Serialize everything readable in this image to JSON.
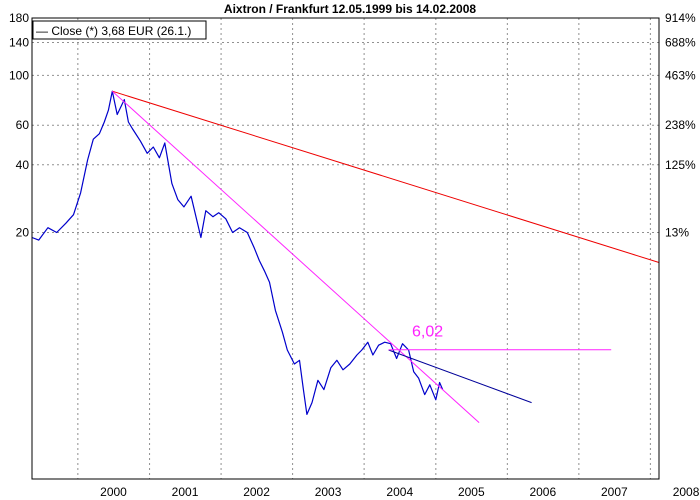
{
  "chart_data": {
    "type": "line",
    "title": "Aixtron / Frankfurt 12.05.1999 bis 14.02.2008",
    "legend": {
      "label": "— Close (*) 3,68 EUR (26.1.)",
      "placement": "top-left"
    },
    "x_axis": {
      "type": "date",
      "range": [
        "1999-05-12",
        "2008-02-14"
      ],
      "tick_labels": [
        "2000",
        "2001",
        "2002",
        "2003",
        "2004",
        "2005",
        "2006",
        "2007",
        "2008"
      ],
      "tick_dates": [
        "2000-01-01",
        "2001-01-01",
        "2002-01-01",
        "2003-01-01",
        "2004-01-01",
        "2005-01-01",
        "2006-01-01",
        "2007-01-01",
        "2008-01-01"
      ]
    },
    "y_axis_left": {
      "scale": "log",
      "tick_labels": [
        "180",
        "140",
        "100",
        "60",
        "40",
        "20"
      ],
      "tick_values": [
        180,
        140,
        100,
        60,
        40,
        20
      ],
      "range": [
        1.6,
        180
      ]
    },
    "y_axis_right": {
      "tick_labels": [
        "914%",
        "688%",
        "463%",
        "238%",
        "125%",
        "13%"
      ]
    },
    "grid": true,
    "series": [
      {
        "name": "Close (*) 3,68 EUR (26.1.)",
        "color": "#0000cc",
        "x": [
          "1999-05-12",
          "1999-06-15",
          "1999-08-01",
          "1999-09-15",
          "1999-11-01",
          "1999-12-10",
          "2000-01-15",
          "2000-02-20",
          "2000-03-20",
          "2000-04-20",
          "2000-05-15",
          "2000-06-05",
          "2000-06-25",
          "2000-07-20",
          "2000-08-25",
          "2000-09-15",
          "2000-10-05",
          "2000-11-15",
          "2000-12-20",
          "2001-01-20",
          "2001-02-20",
          "2001-03-20",
          "2001-04-25",
          "2001-05-25",
          "2001-06-25",
          "2001-08-01",
          "2001-09-20",
          "2001-10-15",
          "2001-11-20",
          "2001-12-20",
          "2002-01-25",
          "2002-03-01",
          "2002-04-05",
          "2002-05-15",
          "2002-06-20",
          "2002-07-15",
          "2002-08-10",
          "2002-09-05",
          "2002-10-05",
          "2002-11-10",
          "2002-12-05",
          "2003-01-10",
          "2003-02-05",
          "2003-02-25",
          "2003-03-15",
          "2003-04-10",
          "2003-05-10",
          "2003-06-10",
          "2003-07-15",
          "2003-08-15",
          "2003-09-15",
          "2003-10-20",
          "2003-11-25",
          "2003-12-20",
          "2004-01-20",
          "2004-02-15",
          "2004-03-15",
          "2004-04-15",
          "2004-05-15",
          "2004-06-15",
          "2004-07-15",
          "2004-08-15",
          "2004-09-10",
          "2004-10-05",
          "2004-11-05",
          "2004-12-01",
          "2005-01-01",
          "2005-01-20",
          "2005-02-05"
        ],
        "values": [
          19,
          18.5,
          21,
          20,
          22,
          24,
          30,
          42,
          52,
          55,
          62,
          70,
          85,
          67,
          78,
          62,
          58,
          51,
          45,
          48,
          43,
          50,
          33,
          28,
          26,
          29,
          19,
          25,
          23.5,
          24.5,
          23,
          20,
          21,
          20,
          17,
          15,
          13.5,
          12,
          9,
          7.2,
          6,
          5.2,
          5.4,
          4,
          3.1,
          3.5,
          4.4,
          4,
          5,
          5.4,
          4.9,
          5.2,
          5.7,
          6,
          6.5,
          5.7,
          6.3,
          6.5,
          6.4,
          5.5,
          6.4,
          6,
          4.8,
          4.5,
          3.8,
          4.2,
          3.6,
          4.3,
          4.0
        ]
      },
      {
        "name": "",
        "color": "#ee0000",
        "x": [
          "2000-06-25",
          "2008-02-14"
        ],
        "values": [
          85,
          14.7
        ]
      },
      {
        "name": "",
        "color": "#ff22ff",
        "x": [
          "2000-06-25",
          "2005-08-10"
        ],
        "values": [
          85,
          2.85
        ]
      },
      {
        "name": "",
        "color": "#000099",
        "x": [
          "2004-05-05",
          "2006-05-05"
        ],
        "values": [
          6.0,
          3.5
        ]
      },
      {
        "name": "",
        "color": "#ff22ff",
        "x": [
          "2004-05-05",
          "2007-06-15"
        ],
        "values": [
          6.02,
          6.02
        ]
      }
    ],
    "annotations": [
      {
        "text": "6,02",
        "x": "2004-11-20",
        "y": 6.9,
        "color": "#ff22ff"
      }
    ]
  }
}
